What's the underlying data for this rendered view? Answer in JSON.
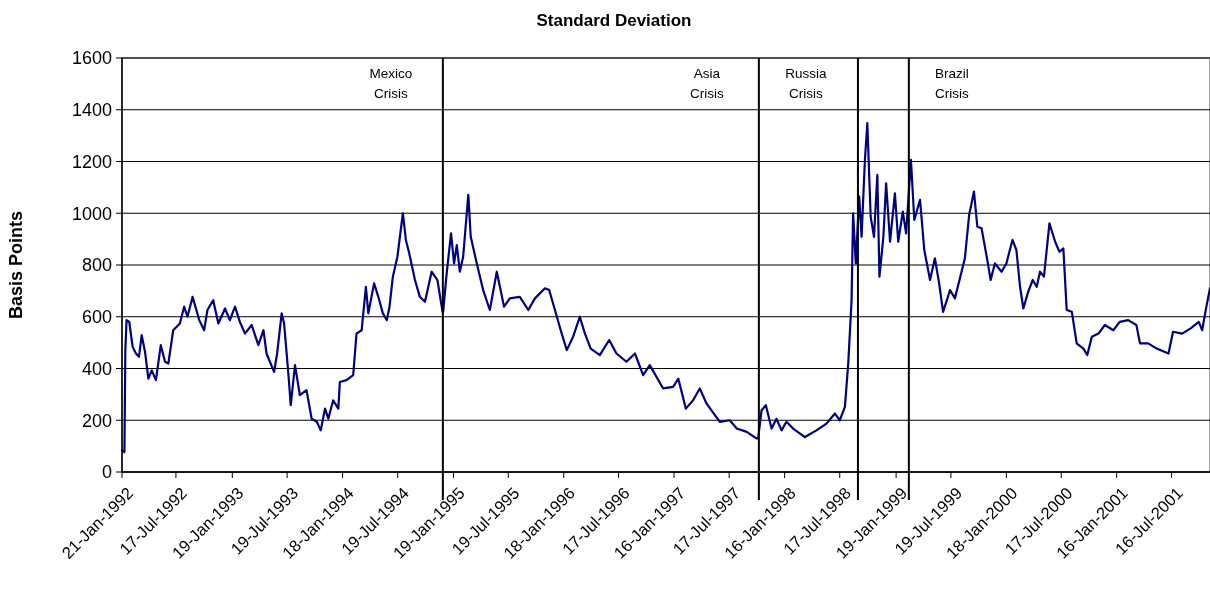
{
  "chart_data": {
    "type": "line",
    "title": "Standard Deviation",
    "ylabel": "Basis Points",
    "x": [
      "1992-01-21",
      "1992-01-29",
      "1992-02-01",
      "1992-02-05",
      "1992-02-14",
      "1992-02-25",
      "1992-03-07",
      "1992-03-17",
      "1992-03-26",
      "1992-04-06",
      "1992-04-17",
      "1992-04-28",
      "1992-05-12",
      "1992-05-28",
      "1992-06-11",
      "1992-06-22",
      "1992-07-08",
      "1992-07-30",
      "1992-08-13",
      "1992-08-24",
      "1992-09-10",
      "1992-10-02",
      "1992-10-18",
      "1992-10-29",
      "1992-11-17",
      "1992-12-04",
      "1992-12-26",
      "1993-01-11",
      "1993-01-28",
      "1993-02-13",
      "1993-03-02",
      "1993-03-24",
      "1993-04-15",
      "1993-05-02",
      "1993-05-12",
      "1993-06-06",
      "1993-06-16",
      "1993-07-01",
      "1993-07-09",
      "1993-07-23",
      "1993-07-31",
      "1993-08-14",
      "1993-08-30",
      "1993-09-21",
      "1993-10-08",
      "1993-10-25",
      "1993-11-07",
      "1993-11-21",
      "1993-12-02",
      "1993-12-18",
      "1994-01-04",
      "1994-01-09",
      "1994-01-31",
      "1994-02-22",
      "1994-03-05",
      "1994-03-22",
      "1994-04-05",
      "1994-04-13",
      "1994-05-02",
      "1994-05-16",
      "1994-05-31",
      "1994-06-13",
      "1994-06-22",
      "1994-07-03",
      "1994-07-18",
      "1994-08-05",
      "1994-08-15",
      "1994-08-26",
      "1994-09-14",
      "1994-09-30",
      "1994-10-17",
      "1994-11-08",
      "1994-11-27",
      "1994-12-14",
      "1994-12-16",
      "1994-12-27",
      "1995-01-11",
      "1995-01-21",
      "1995-01-30",
      "1995-02-09",
      "1995-02-20",
      "1995-03-09",
      "1995-03-17",
      "1995-04-06",
      "1995-04-27",
      "1995-05-19",
      "1995-06-11",
      "1995-07-05",
      "1995-07-24",
      "1995-08-26",
      "1995-09-23",
      "1995-10-15",
      "1995-11-17",
      "1995-12-01",
      "1995-12-20",
      "1996-01-08",
      "1996-01-28",
      "1996-02-18",
      "1996-03-11",
      "1996-03-28",
      "1996-04-16",
      "1996-05-16",
      "1996-06-16",
      "1996-07-10",
      "1996-08-12",
      "1996-09-09",
      "1996-10-06",
      "1996-10-28",
      "1996-12-11",
      "1997-01-13",
      "1997-01-30",
      "1997-02-24",
      "1997-03-20",
      "1997-04-11",
      "1997-05-03",
      "1997-06-16",
      "1997-07-19",
      "1997-08-11",
      "1997-09-13",
      "1997-10-16",
      "1997-10-21",
      "1997-11-01",
      "1997-11-15",
      "1997-12-04",
      "1997-12-20",
      "1998-01-06",
      "1998-01-22",
      "1998-02-13",
      "1998-03-24",
      "1998-05-01",
      "1998-06-03",
      "1998-07-01",
      "1998-07-17",
      "1998-08-03",
      "1998-08-14",
      "1998-08-25",
      "1998-08-30",
      "1998-09-08",
      "1998-09-19",
      "1998-09-27",
      "1998-10-08",
      "1998-10-16",
      "1998-10-27",
      "1998-11-07",
      "1998-11-18",
      "1998-11-25",
      "1998-12-08",
      "1998-12-17",
      "1998-12-30",
      "1999-01-15",
      "1999-01-26",
      "1999-02-10",
      "1999-02-21",
      "1999-03-09",
      "1999-03-20",
      "1999-04-08",
      "1999-04-22",
      "1999-05-11",
      "1999-05-27",
      "1999-06-10",
      "1999-06-23",
      "1999-07-16",
      "1999-08-01",
      "1999-08-23",
      "1999-09-03",
      "1999-09-17",
      "1999-10-03",
      "1999-10-14",
      "1999-10-28",
      "1999-11-16",
      "1999-11-27",
      "1999-12-11",
      "2000-01-02",
      "2000-01-18",
      "2000-02-07",
      "2000-02-20",
      "2000-03-03",
      "2000-03-14",
      "2000-03-30",
      "2000-04-14",
      "2000-04-27",
      "2000-05-08",
      "2000-05-21",
      "2000-06-08",
      "2000-06-27",
      "2000-07-11",
      "2000-07-24",
      "2000-08-04",
      "2000-08-21",
      "2000-09-06",
      "2000-09-28",
      "2000-10-11",
      "2000-10-26",
      "2000-11-17",
      "2000-12-08",
      "2001-01-05",
      "2001-01-26",
      "2001-02-23",
      "2001-03-22",
      "2001-04-03",
      "2001-04-30",
      "2001-05-28",
      "2001-07-06",
      "2001-07-21",
      "2001-08-20",
      "2001-09-17",
      "2001-10-14",
      "2001-10-25",
      "2001-11-09",
      "2001-11-20"
    ],
    "series": [
      {
        "color": "#000080",
        "values": [
          84,
          77,
          470,
          587,
          580,
          484,
          458,
          445,
          529,
          464,
          361,
          393,
          355,
          490,
          426,
          419,
          548,
          574,
          639,
          600,
          677,
          587,
          548,
          626,
          664,
          574,
          632,
          587,
          639,
          580,
          535,
          568,
          490,
          548,
          458,
          387,
          458,
          613,
          574,
          381,
          258,
          413,
          297,
          316,
          206,
          194,
          161,
          245,
          206,
          277,
          245,
          348,
          355,
          374,
          535,
          548,
          716,
          613,
          729,
          677,
          613,
          587,
          639,
          755,
          832,
          1000,
          897,
          845,
          742,
          677,
          658,
          774,
          742,
          619,
          619,
          761,
          922,
          806,
          877,
          774,
          832,
          1071,
          909,
          806,
          703,
          626,
          774,
          639,
          671,
          677,
          626,
          671,
          710,
          703,
          626,
          548,
          471,
          523,
          600,
          535,
          477,
          452,
          510,
          458,
          426,
          458,
          374,
          413,
          323,
          329,
          361,
          245,
          277,
          323,
          265,
          194,
          200,
          168,
          155,
          129,
          135,
          239,
          258,
          168,
          206,
          161,
          194,
          168,
          135,
          161,
          187,
          226,
          200,
          252,
          419,
          664,
          1000,
          806,
          1065,
          909,
          1206,
          1348,
          987,
          909,
          1148,
          755,
          909,
          1116,
          890,
          1077,
          890,
          1006,
          922,
          1206,
          974,
          1052,
          858,
          742,
          826,
          729,
          619,
          703,
          671,
          774,
          826,
          993,
          1084,
          948,
          942,
          819,
          742,
          806,
          774,
          806,
          897,
          858,
          716,
          632,
          697,
          742,
          716,
          774,
          755,
          961,
          890,
          851,
          864,
          626,
          619,
          497,
          477,
          452,
          523,
          535,
          568,
          548,
          580,
          587,
          568,
          497,
          497,
          477,
          458,
          542,
          535,
          555,
          580,
          548,
          645,
          710
        ]
      }
    ],
    "xlim": [
      "1992-01-21",
      "2001-11-20"
    ],
    "xticks": [
      {
        "value": "1992-01-21",
        "label": "21-Jan-1992"
      },
      {
        "value": "1992-07-17",
        "label": "17-Jul-1992"
      },
      {
        "value": "1993-01-19",
        "label": "19-Jan-1993"
      },
      {
        "value": "1993-07-19",
        "label": "19-Jul-1993"
      },
      {
        "value": "1994-01-18",
        "label": "18-Jan-1994"
      },
      {
        "value": "1994-07-19",
        "label": "19-Jul-1994"
      },
      {
        "value": "1995-01-19",
        "label": "19-Jan-1995"
      },
      {
        "value": "1995-07-19",
        "label": "19-Jul-1995"
      },
      {
        "value": "1996-01-18",
        "label": "18-Jan-1996"
      },
      {
        "value": "1996-07-17",
        "label": "17-Jul-1996"
      },
      {
        "value": "1997-01-16",
        "label": "16-Jan-1997"
      },
      {
        "value": "1997-07-17",
        "label": "17-Jul-1997"
      },
      {
        "value": "1998-01-16",
        "label": "16-Jan-1998"
      },
      {
        "value": "1998-07-17",
        "label": "17-Jul-1998"
      },
      {
        "value": "1999-01-19",
        "label": "19-Jan-1999"
      },
      {
        "value": "1999-07-19",
        "label": "19-Jul-1999"
      },
      {
        "value": "2000-01-18",
        "label": "18-Jan-2000"
      },
      {
        "value": "2000-07-17",
        "label": "17-Jul-2000"
      },
      {
        "value": "2001-01-16",
        "label": "16-Jan-2001"
      },
      {
        "value": "2001-07-16",
        "label": "16-Jul-2001"
      }
    ],
    "ylim": [
      0,
      1600
    ],
    "yticks": [
      0,
      200,
      400,
      600,
      800,
      1000,
      1200,
      1400,
      1600
    ],
    "grid": "y",
    "ref_lines": [
      {
        "axis": "x",
        "value": "1994-12-15",
        "label": "Mexico Crisis",
        "color": "#000000"
      },
      {
        "axis": "x",
        "value": "1997-10-23",
        "label": "Asia Crisis",
        "color": "#000000"
      },
      {
        "axis": "x",
        "value": "1998-09-15",
        "label": "Russia Crisis",
        "color": "#000000"
      },
      {
        "axis": "x",
        "value": "1999-03-02",
        "label": "Brazil Crisis",
        "color": "#000000"
      }
    ]
  }
}
